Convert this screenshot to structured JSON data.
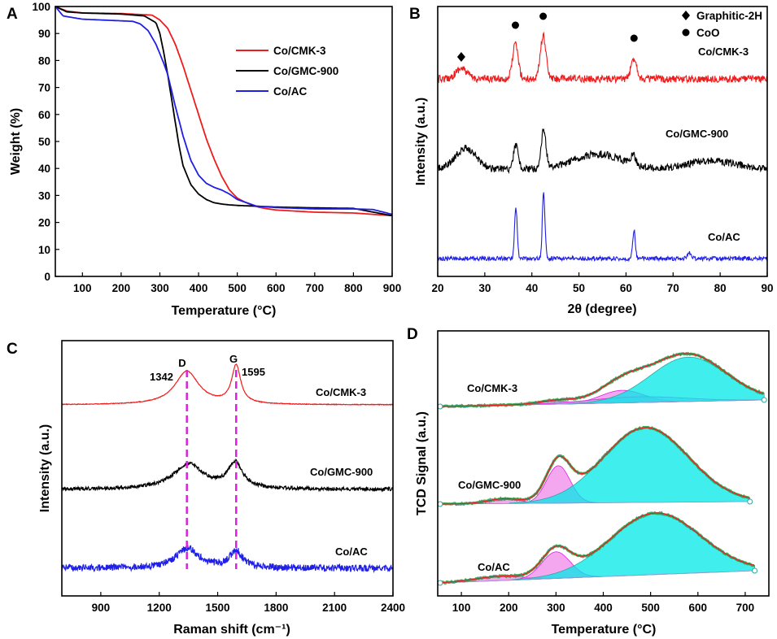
{
  "colors": {
    "red": "#ee1c1c",
    "black": "#000000",
    "blue": "#1f1fe6",
    "magenta": "#e020e0",
    "cyan": "#00e8e8",
    "pink": "#f080e8",
    "teal": "#2aa8a0",
    "green": "#2d9a2d",
    "lavender": "#b8b0e8"
  },
  "chart_data": [
    {
      "panel": "A",
      "type": "line",
      "xlabel": "Temperature (°C)",
      "ylabel": "Weight (%)",
      "xlim": [
        30,
        900
      ],
      "ylim": [
        0,
        100
      ],
      "xticks": [
        "100",
        "200",
        "300",
        "400",
        "500",
        "600",
        "700",
        "800",
        "900"
      ],
      "yticks": [
        "0",
        "10",
        "20",
        "30",
        "40",
        "50",
        "60",
        "70",
        "80",
        "90",
        "100"
      ],
      "legend_position": "top-right",
      "series": [
        {
          "name": "Co/CMK-3",
          "color": "red",
          "x": [
            30,
            60,
            100,
            200,
            280,
            300,
            320,
            340,
            360,
            380,
            400,
            420,
            440,
            460,
            480,
            500,
            520,
            540,
            560,
            580,
            600,
            700,
            800,
            900
          ],
          "y": [
            100,
            98.3,
            97.6,
            97.4,
            96.8,
            95,
            92,
            86,
            78,
            69,
            60,
            51,
            43.5,
            37,
            32,
            29,
            27.5,
            26.3,
            25.5,
            25,
            24.6,
            23.8,
            23.5,
            22.5
          ]
        },
        {
          "name": "Co/GMC-900",
          "color": "black",
          "x": [
            30,
            60,
            100,
            200,
            260,
            290,
            300,
            310,
            320,
            330,
            340,
            350,
            360,
            380,
            400,
            420,
            440,
            460,
            480,
            500,
            550,
            600,
            700,
            800,
            900
          ],
          "y": [
            100,
            98,
            97.6,
            97.2,
            96.5,
            94,
            90,
            83,
            75,
            66,
            57,
            48,
            41,
            34,
            30.5,
            28.5,
            27.3,
            26.8,
            26.5,
            26.3,
            26,
            25.7,
            25.4,
            25.2,
            22.5
          ]
        },
        {
          "name": "Co/AC",
          "color": "blue",
          "x": [
            30,
            50,
            100,
            150,
            200,
            230,
            250,
            270,
            290,
            310,
            320,
            340,
            360,
            380,
            400,
            420,
            440,
            460,
            480,
            500,
            550,
            600,
            700,
            800,
            850,
            900
          ],
          "y": [
            100,
            96.5,
            95.3,
            95,
            94.7,
            94.5,
            93.5,
            91,
            86,
            79,
            75,
            63,
            52,
            43,
            37.5,
            34.5,
            33,
            32,
            30.5,
            28.5,
            26,
            25.5,
            25,
            25,
            24.8,
            23
          ]
        }
      ]
    },
    {
      "panel": "B",
      "type": "line",
      "xlabel": "2θ (degree)",
      "ylabel": "Intensity (a.u.)",
      "xlim": [
        20,
        90
      ],
      "xticks": [
        "20",
        "30",
        "40",
        "50",
        "60",
        "70",
        "80",
        "90"
      ],
      "legend": [
        {
          "marker": "diamond",
          "label": "Graphitic-2H"
        },
        {
          "marker": "circle",
          "label": "CoO"
        }
      ],
      "legend_position": "top-right",
      "series": [
        {
          "name": "Co/CMK-3",
          "color": "red",
          "peaks": [
            [
              25,
              0.15,
              1.2
            ],
            [
              36.5,
              0.5,
              0.6
            ],
            [
              42.4,
              0.62,
              0.6
            ],
            [
              61.7,
              0.3,
              0.6
            ]
          ]
        },
        {
          "name": "Co/GMC-900",
          "color": "black",
          "peaks": [
            [
              26,
              0.3,
              2.2
            ],
            [
              36.6,
              0.35,
              0.5
            ],
            [
              42.5,
              0.55,
              0.5
            ],
            [
              54,
              0.22,
              5
            ],
            [
              61.5,
              0.15,
              0.5
            ],
            [
              78,
              0.12,
              5
            ]
          ]
        },
        {
          "name": "Co/AC",
          "color": "blue",
          "peaks": [
            [
              36.6,
              0.55,
              0.28
            ],
            [
              42.5,
              0.7,
              0.28
            ],
            [
              61.7,
              0.3,
              0.28
            ],
            [
              73.5,
              0.06,
              0.4
            ]
          ]
        }
      ],
      "markers": [
        {
          "symbol": "diamond",
          "x": 25
        },
        {
          "symbol": "circle",
          "x": 36.5
        },
        {
          "symbol": "circle",
          "x": 42.4
        },
        {
          "symbol": "circle",
          "x": 61.7
        }
      ]
    },
    {
      "panel": "C",
      "type": "line",
      "xlabel": "Raman shift (cm⁻¹)",
      "ylabel": "Intensity (a.u.)",
      "xlim": [
        700,
        2400
      ],
      "xticks": [
        "900",
        "1200",
        "1500",
        "1800",
        "2100",
        "2400"
      ],
      "annotations": {
        "D_label": "D",
        "G_label": "G",
        "D_value": "1342",
        "G_value": "1595"
      },
      "dashed_lines_at": [
        1342,
        1595
      ],
      "series": [
        {
          "name": "Co/CMK-3",
          "color": "red",
          "D": [
            1342,
            0.72,
            75
          ],
          "G": [
            1595,
            0.82,
            28
          ]
        },
        {
          "name": "Co/GMC-900",
          "color": "black",
          "D": [
            1350,
            0.55,
            95
          ],
          "G": [
            1590,
            0.55,
            45
          ]
        },
        {
          "name": "Co/AC",
          "color": "blue",
          "D": [
            1345,
            0.45,
            70
          ],
          "G": [
            1595,
            0.38,
            40
          ]
        }
      ]
    },
    {
      "panel": "D",
      "type": "area",
      "xlabel": "Temperature (°C)",
      "ylabel": "TCD Signal (a.u.)",
      "xlim": [
        50,
        750
      ],
      "xticks": [
        "100",
        "200",
        "300",
        "400",
        "500",
        "600",
        "700"
      ],
      "series": [
        {
          "name": "Co/CMK-3",
          "x_end": 740,
          "components": [
            [
              300,
              0.05,
              35,
              "lavender"
            ],
            [
              440,
              0.22,
              45,
              "pink"
            ],
            [
              475,
              0.1,
              100,
              "lavender"
            ],
            [
              580,
              0.78,
              80,
              "cyan"
            ]
          ]
        },
        {
          "name": "Co/GMC-900",
          "x_end": 710,
          "components": [
            [
              190,
              0.06,
              35,
              "pink"
            ],
            [
              305,
              0.5,
              25,
              "pink"
            ],
            [
              490,
              1.0,
              90,
              "cyan"
            ]
          ]
        },
        {
          "name": "Co/AC",
          "x_end": 720,
          "components": [
            [
              180,
              0.06,
              50,
              "pink"
            ],
            [
              300,
              0.38,
              30,
              "pink"
            ],
            [
              510,
              0.88,
              95,
              "cyan"
            ]
          ]
        }
      ]
    }
  ]
}
